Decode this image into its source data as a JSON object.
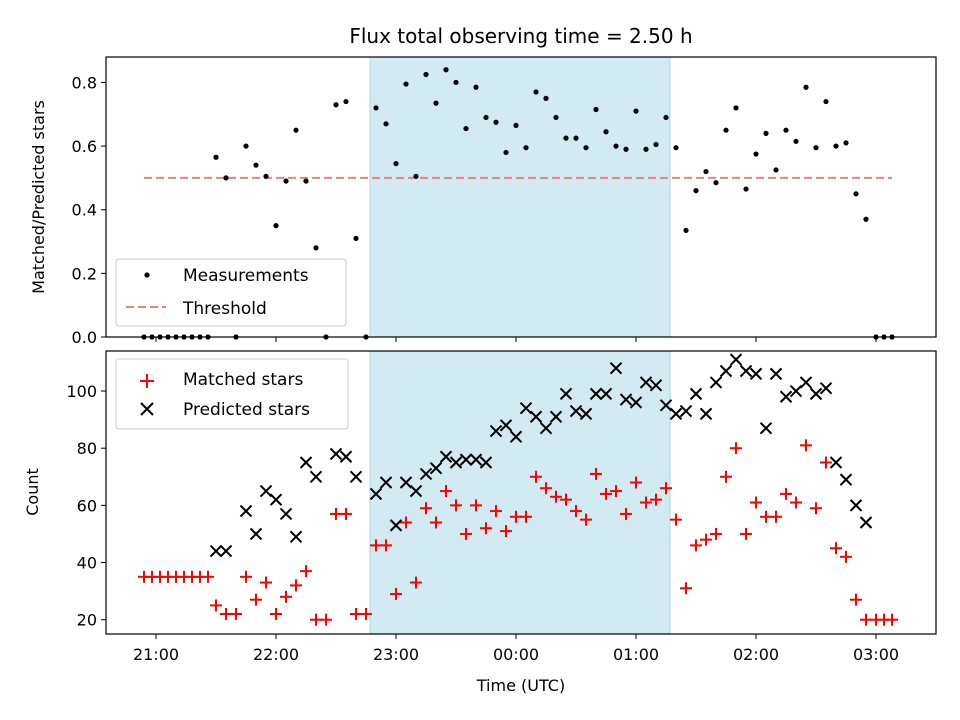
{
  "chart_data": [
    {
      "type": "scatter",
      "title": "Flux total observing time = 2.50 h",
      "xlabel": "",
      "ylabel": "Matched/Predicted stars",
      "ylim": [
        0,
        0.88
      ],
      "yticks": [
        0.0,
        0.2,
        0.4,
        0.6,
        0.8
      ],
      "ytick_labels": [
        "0.0",
        "0.2",
        "0.4",
        "0.6",
        "0.8"
      ],
      "xlim": [
        "20:35",
        "03:30"
      ],
      "shaded_region": [
        "22:47",
        "01:17"
      ],
      "legend": "lower-left",
      "series": [
        {
          "name": "Measurements",
          "marker": "dot",
          "color": "#000000",
          "points": [
            [
              "20:54",
              0.0
            ],
            [
              "20:58",
              0.0
            ],
            [
              "21:02",
              0.0
            ],
            [
              "21:06",
              0.0
            ],
            [
              "21:10",
              0.0
            ],
            [
              "21:14",
              0.0
            ],
            [
              "21:18",
              0.0
            ],
            [
              "21:22",
              0.0
            ],
            [
              "21:26",
              0.0
            ],
            [
              "21:30",
              0.565
            ],
            [
              "21:35",
              0.5
            ],
            [
              "21:40",
              0.0
            ],
            [
              "21:45",
              0.6
            ],
            [
              "21:50",
              0.54
            ],
            [
              "21:55",
              0.505
            ],
            [
              "22:00",
              0.35
            ],
            [
              "22:05",
              0.49
            ],
            [
              "22:10",
              0.65
            ],
            [
              "22:15",
              0.49
            ],
            [
              "22:20",
              0.28
            ],
            [
              "22:25",
              0.0
            ],
            [
              "22:30",
              0.73
            ],
            [
              "22:35",
              0.74
            ],
            [
              "22:40",
              0.31
            ],
            [
              "22:45",
              0.0
            ],
            [
              "22:50",
              0.72
            ],
            [
              "22:55",
              0.67
            ],
            [
              "23:00",
              0.545
            ],
            [
              "23:05",
              0.795
            ],
            [
              "23:10",
              0.505
            ],
            [
              "23:15",
              0.825
            ],
            [
              "23:20",
              0.735
            ],
            [
              "23:25",
              0.84
            ],
            [
              "23:30",
              0.8
            ],
            [
              "23:35",
              0.655
            ],
            [
              "23:40",
              0.785
            ],
            [
              "23:45",
              0.69
            ],
            [
              "23:50",
              0.675
            ],
            [
              "23:55",
              0.58
            ],
            [
              "00:00",
              0.665
            ],
            [
              "00:05",
              0.595
            ],
            [
              "00:10",
              0.77
            ],
            [
              "00:15",
              0.75
            ],
            [
              "00:20",
              0.69
            ],
            [
              "00:25",
              0.625
            ],
            [
              "00:30",
              0.625
            ],
            [
              "00:35",
              0.595
            ],
            [
              "00:40",
              0.715
            ],
            [
              "00:45",
              0.645
            ],
            [
              "00:50",
              0.6
            ],
            [
              "00:55",
              0.59
            ],
            [
              "01:00",
              0.71
            ],
            [
              "01:05",
              0.59
            ],
            [
              "01:10",
              0.605
            ],
            [
              "01:15",
              0.69
            ],
            [
              "01:20",
              0.595
            ],
            [
              "01:25",
              0.335
            ],
            [
              "01:30",
              0.46
            ],
            [
              "01:35",
              0.52
            ],
            [
              "01:40",
              0.485
            ],
            [
              "01:45",
              0.65
            ],
            [
              "01:50",
              0.72
            ],
            [
              "01:55",
              0.465
            ],
            [
              "02:00",
              0.575
            ],
            [
              "02:05",
              0.64
            ],
            [
              "02:10",
              0.525
            ],
            [
              "02:15",
              0.65
            ],
            [
              "02:20",
              0.615
            ],
            [
              "02:25",
              0.785
            ],
            [
              "02:30",
              0.595
            ],
            [
              "02:35",
              0.74
            ],
            [
              "02:40",
              0.6
            ],
            [
              "02:45",
              0.61
            ],
            [
              "02:50",
              0.45
            ],
            [
              "02:55",
              0.37
            ],
            [
              "03:00",
              0.0
            ],
            [
              "03:04",
              0.0
            ],
            [
              "03:08",
              0.0
            ]
          ]
        },
        {
          "name": "Threshold",
          "type": "line",
          "style": "dashed",
          "color": "#f08080",
          "points": [
            [
              "20:54",
              0.5
            ],
            [
              "03:08",
              0.5
            ]
          ]
        }
      ]
    },
    {
      "type": "scatter",
      "title": "",
      "xlabel": "Time (UTC)",
      "ylabel": "Count",
      "ylim": [
        15,
        114
      ],
      "yticks": [
        20,
        40,
        60,
        80,
        100
      ],
      "ytick_labels": [
        "20",
        "40",
        "60",
        "80",
        "100"
      ],
      "xticks": [
        "21:00",
        "22:00",
        "23:00",
        "00:00",
        "01:00",
        "02:00",
        "03:00"
      ],
      "xtick_labels": [
        "21:00",
        "22:00",
        "23:00",
        "00:00",
        "01:00",
        "02:00",
        "03:00"
      ],
      "xlim": [
        "20:35",
        "03:30"
      ],
      "shaded_region": [
        "22:47",
        "01:17"
      ],
      "legend": "top-left",
      "series": [
        {
          "name": "Matched stars",
          "marker": "plus",
          "color": "#ff0000",
          "points": [
            [
              "20:54",
              35
            ],
            [
              "20:58",
              35
            ],
            [
              "21:02",
              35
            ],
            [
              "21:06",
              35
            ],
            [
              "21:10",
              35
            ],
            [
              "21:14",
              35
            ],
            [
              "21:18",
              35
            ],
            [
              "21:22",
              35
            ],
            [
              "21:26",
              35
            ],
            [
              "21:30",
              25
            ],
            [
              "21:35",
              22
            ],
            [
              "21:40",
              22
            ],
            [
              "21:45",
              35
            ],
            [
              "21:50",
              27
            ],
            [
              "21:55",
              33
            ],
            [
              "22:00",
              22
            ],
            [
              "22:05",
              28
            ],
            [
              "22:10",
              32
            ],
            [
              "22:15",
              37
            ],
            [
              "22:20",
              20
            ],
            [
              "22:25",
              20
            ],
            [
              "22:30",
              57
            ],
            [
              "22:35",
              57
            ],
            [
              "22:40",
              22
            ],
            [
              "22:45",
              22
            ],
            [
              "22:50",
              46
            ],
            [
              "22:55",
              46
            ],
            [
              "23:00",
              29
            ],
            [
              "23:05",
              54
            ],
            [
              "23:10",
              33
            ],
            [
              "23:15",
              59
            ],
            [
              "23:20",
              54
            ],
            [
              "23:25",
              65
            ],
            [
              "23:30",
              60
            ],
            [
              "23:35",
              50
            ],
            [
              "23:40",
              60
            ],
            [
              "23:45",
              52
            ],
            [
              "23:50",
              58
            ],
            [
              "23:55",
              51
            ],
            [
              "00:00",
              56
            ],
            [
              "00:05",
              56
            ],
            [
              "00:10",
              70
            ],
            [
              "00:15",
              66
            ],
            [
              "00:20",
              63
            ],
            [
              "00:25",
              62
            ],
            [
              "00:30",
              58
            ],
            [
              "00:35",
              55
            ],
            [
              "00:40",
              71
            ],
            [
              "00:45",
              64
            ],
            [
              "00:50",
              65
            ],
            [
              "00:55",
              57
            ],
            [
              "01:00",
              68
            ],
            [
              "01:05",
              61
            ],
            [
              "01:10",
              62
            ],
            [
              "01:15",
              66
            ],
            [
              "01:20",
              55
            ],
            [
              "01:25",
              31
            ],
            [
              "01:30",
              46
            ],
            [
              "01:35",
              48
            ],
            [
              "01:40",
              50
            ],
            [
              "01:45",
              70
            ],
            [
              "01:50",
              80
            ],
            [
              "01:55",
              50
            ],
            [
              "02:00",
              61
            ],
            [
              "02:05",
              56
            ],
            [
              "02:10",
              56
            ],
            [
              "02:15",
              64
            ],
            [
              "02:20",
              61
            ],
            [
              "02:25",
              81
            ],
            [
              "02:30",
              59
            ],
            [
              "02:35",
              75
            ],
            [
              "02:40",
              45
            ],
            [
              "02:45",
              42
            ],
            [
              "02:50",
              27
            ],
            [
              "02:55",
              20
            ],
            [
              "03:00",
              20
            ],
            [
              "03:04",
              20
            ],
            [
              "03:08",
              20
            ]
          ]
        },
        {
          "name": "Predicted stars",
          "marker": "x",
          "color": "#000000",
          "points": [
            [
              "21:30",
              44
            ],
            [
              "21:35",
              44
            ],
            [
              "21:45",
              58
            ],
            [
              "21:50",
              50
            ],
            [
              "21:55",
              65
            ],
            [
              "22:00",
              62
            ],
            [
              "22:05",
              57
            ],
            [
              "22:10",
              49
            ],
            [
              "22:15",
              75
            ],
            [
              "22:20",
              70
            ],
            [
              "22:30",
              78
            ],
            [
              "22:35",
              77
            ],
            [
              "22:40",
              70
            ],
            [
              "22:50",
              64
            ],
            [
              "22:55",
              68
            ],
            [
              "23:00",
              53
            ],
            [
              "23:05",
              68
            ],
            [
              "23:10",
              65
            ],
            [
              "23:15",
              71
            ],
            [
              "23:20",
              73
            ],
            [
              "23:25",
              77
            ],
            [
              "23:30",
              75
            ],
            [
              "23:35",
              76
            ],
            [
              "23:40",
              76
            ],
            [
              "23:45",
              75
            ],
            [
              "23:50",
              86
            ],
            [
              "23:55",
              88
            ],
            [
              "00:00",
              84
            ],
            [
              "00:05",
              94
            ],
            [
              "00:10",
              91
            ],
            [
              "00:15",
              87
            ],
            [
              "00:20",
              91
            ],
            [
              "00:25",
              99
            ],
            [
              "00:30",
              93
            ],
            [
              "00:35",
              92
            ],
            [
              "00:40",
              99
            ],
            [
              "00:45",
              99
            ],
            [
              "00:50",
              108
            ],
            [
              "00:55",
              97
            ],
            [
              "01:00",
              96
            ],
            [
              "01:05",
              103
            ],
            [
              "01:10",
              102
            ],
            [
              "01:15",
              95
            ],
            [
              "01:20",
              92
            ],
            [
              "01:25",
              93
            ],
            [
              "01:30",
              99
            ],
            [
              "01:35",
              92
            ],
            [
              "01:40",
              103
            ],
            [
              "01:45",
              107
            ],
            [
              "01:50",
              111
            ],
            [
              "01:55",
              107
            ],
            [
              "02:00",
              106
            ],
            [
              "02:05",
              87
            ],
            [
              "02:10",
              106
            ],
            [
              "02:15",
              98
            ],
            [
              "02:20",
              100
            ],
            [
              "02:25",
              103
            ],
            [
              "02:30",
              99
            ],
            [
              "02:35",
              101
            ],
            [
              "02:40",
              75
            ],
            [
              "02:45",
              69
            ],
            [
              "02:50",
              60
            ],
            [
              "02:55",
              54
            ]
          ]
        }
      ]
    }
  ],
  "colors": {
    "shade": "#add8e6",
    "matched": "#ff0000",
    "predicted": "#000000",
    "threshold": "#f08080"
  }
}
